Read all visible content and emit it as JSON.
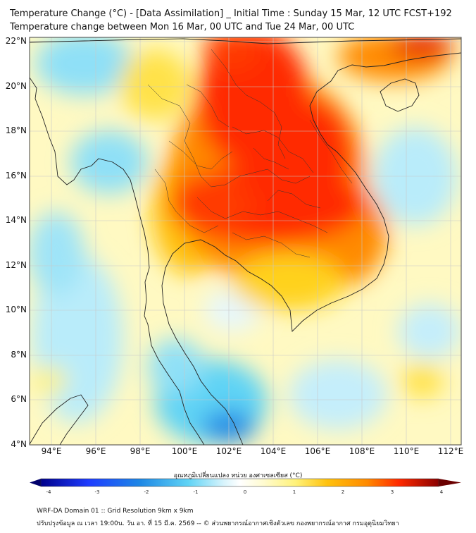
{
  "header": {
    "title_line1": "Temperature Change (°C) - [Data Assimilation] _ Initial Time : Sunday 15 Mar, 12 UTC FCST+192",
    "title_line2": "Temperature change between Mon 16 Mar, 00 UTC and Tue 24 Mar, 00 UTC"
  },
  "map": {
    "lat_labels": [
      "22°N",
      "20°N",
      "18°N",
      "16°N",
      "14°N",
      "12°N",
      "10°N",
      "8°N",
      "6°N",
      "4°N"
    ],
    "lon_labels": [
      "94°E",
      "96°E",
      "98°E",
      "100°E",
      "102°E",
      "104°E",
      "106°E",
      "108°E",
      "110°E",
      "112°E"
    ],
    "colors": {
      "cold_strong": "#1e88e5",
      "cold": "#5fd3f5",
      "neutral": "#ffffff",
      "warm_light": "#fff27a",
      "warm": "#ffc20e",
      "hot": "#ff8a00",
      "very_hot": "#ff2a00",
      "extreme": "#d40000"
    }
  },
  "colorbar": {
    "title": "อุณหภูมิเปลี่ยนแปลง หน่วย องศาเซลเซียส (°C)",
    "ticks": [
      "-4",
      "-3",
      "-2",
      "-1",
      "0",
      "1",
      "2",
      "3",
      "4"
    ]
  },
  "footer": {
    "line1": "WRF-DA Domain 01 :: Grid Resolution 9km x 9km",
    "line2": "ปรับปรุงข้อมูล ณ เวลา 19:00น. วัน อา. ที่ 15 มี.ค. 2569 -- © ส่วนพยากรณ์อากาศเชิงตัวเลข กองพยากรณ์อากาศ กรมอุตุนิยมวิทยา"
  }
}
